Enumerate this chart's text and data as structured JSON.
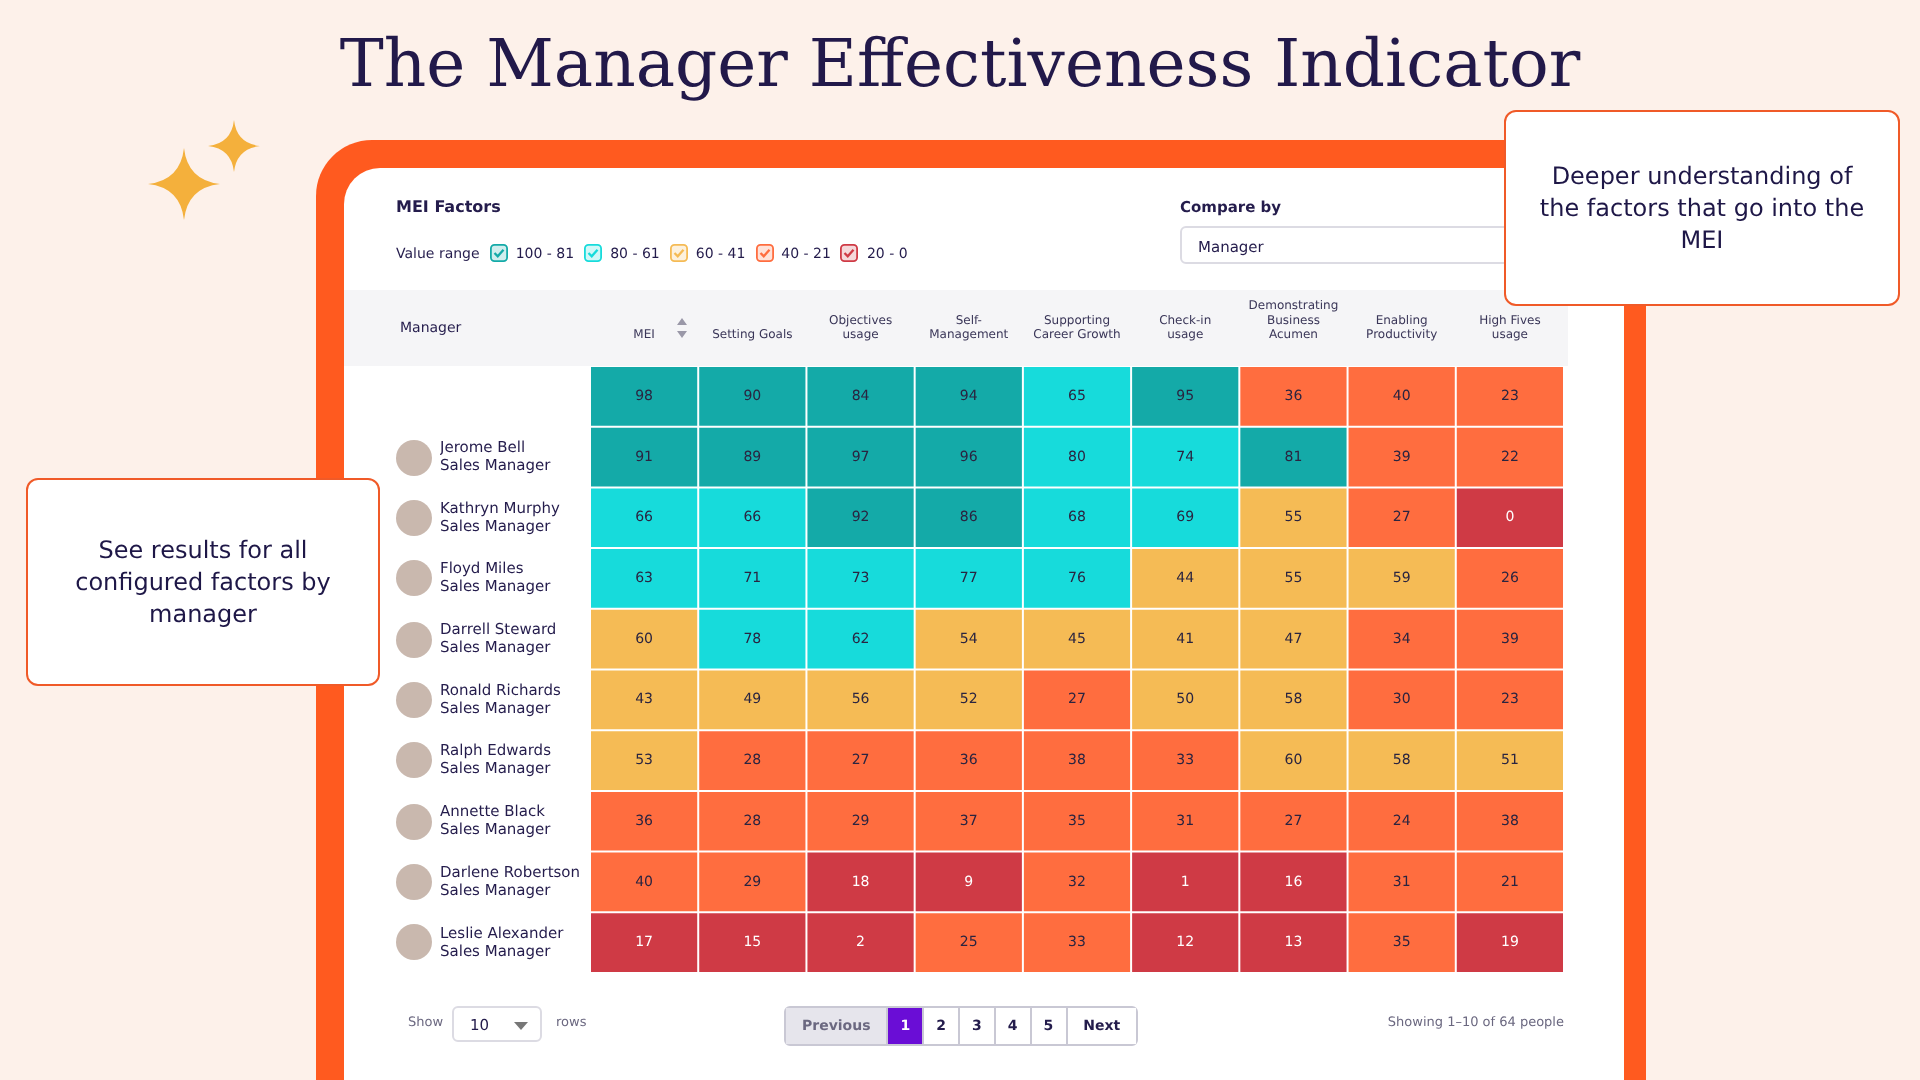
{
  "chart_data": {
    "type": "heatmap",
    "title": "The Manager Effectiveness Indicator",
    "subtitle": "MEI Factors",
    "ylabel": "Manager",
    "legend_title": "Value range",
    "colors": [
      [
        "#14aaa8",
        "#14aaa8",
        "#14aaa8",
        "#14aaa8",
        "#17dbdb",
        "#14aaa8",
        "#ff6d3f",
        "#ff6d3f",
        "#ff6d3f"
      ],
      [
        "#14aaa8",
        "#14aaa8",
        "#14aaa8",
        "#14aaa8",
        "#17dbdb",
        "#17dbdb",
        "#14aaa8",
        "#ff6d3f",
        "#ff6d3f"
      ],
      [
        "#17dbdb",
        "#17dbdb",
        "#14aaa8",
        "#14aaa8",
        "#17dbdb",
        "#17dbdb",
        "#f5bb55",
        "#ff6d3f",
        "#cf3a45"
      ],
      [
        "#17dbdb",
        "#17dbdb",
        "#17dbdb",
        "#17dbdb",
        "#17dbdb",
        "#f5bb55",
        "#f5bb55",
        "#f5bb55",
        "#ff6d3f"
      ],
      [
        "#f5bb55",
        "#17dbdb",
        "#17dbdb",
        "#f5bb55",
        "#f5bb55",
        "#f5bb55",
        "#f5bb55",
        "#ff6d3f",
        "#ff6d3f"
      ],
      [
        "#f5bb55",
        "#f5bb55",
        "#f5bb55",
        "#f5bb55",
        "#ff6d3f",
        "#f5bb55",
        "#f5bb55",
        "#ff6d3f",
        "#ff6d3f"
      ],
      [
        "#f5bb55",
        "#ff6d3f",
        "#ff6d3f",
        "#ff6d3f",
        "#ff6d3f",
        "#ff6d3f",
        "#f5bb55",
        "#f5bb55",
        "#f5bb55"
      ],
      [
        "#ff6d3f",
        "#ff6d3f",
        "#ff6d3f",
        "#ff6d3f",
        "#ff6d3f",
        "#ff6d3f",
        "#ff6d3f",
        "#ff6d3f",
        "#ff6d3f"
      ],
      [
        "#ff6d3f",
        "#ff6d3f",
        "#cf3a45",
        "#cf3a45",
        "#ff6d3f",
        "#cf3a45",
        "#cf3a45",
        "#ff6d3f",
        "#ff6d3f"
      ],
      [
        "#cf3a45",
        "#cf3a45",
        "#cf3a45",
        "#ff6d3f",
        "#ff6d3f",
        "#cf3a45",
        "#cf3a45",
        "#ff6d3f",
        "#cf3a45"
      ]
    ],
    "categories": [
      "MEI",
      "Setting Goals",
      "Objectives usage",
      "Self-Management",
      "Supporting Career Growth",
      "Check-in usage",
      "Demonstrating Business Acumen",
      "Enabling Productivity",
      "High Fives usage"
    ],
    "y_categories": [
      null,
      "Jerome Bell\nSales Manager",
      "Kathryn Murphy\nSales Manager",
      "Floyd Miles\nSales Manager",
      "Darrell Steward\nSales Manager",
      "Ronald Richards\nSales Manager",
      "Ralph Edwards\nSales Manager",
      "Annette Black\nSales Manager",
      "Darlene Robertson\nSales Manager",
      "Leslie Alexander\nSales Manager"
    ],
    "cells": [
      [
        98,
        90,
        84,
        94,
        65,
        95,
        36,
        40,
        23
      ],
      [
        91,
        89,
        97,
        96,
        80,
        74,
        81,
        39,
        22
      ],
      [
        66,
        66,
        92,
        86,
        68,
        69,
        55,
        27,
        0
      ],
      [
        63,
        71,
        73,
        77,
        76,
        44,
        55,
        59,
        26
      ],
      [
        60,
        78,
        62,
        54,
        45,
        41,
        47,
        34,
        39
      ],
      [
        43,
        49,
        56,
        52,
        27,
        50,
        58,
        30,
        23
      ],
      [
        53,
        28,
        27,
        36,
        38,
        33,
        60,
        58,
        51
      ],
      [
        36,
        28,
        29,
        37,
        35,
        31,
        27,
        24,
        38
      ],
      [
        40,
        29,
        18,
        9,
        32,
        1,
        16,
        31,
        21
      ],
      [
        17,
        15,
        2,
        25,
        33,
        12,
        13,
        35,
        19
      ]
    ],
    "data_labels": true,
    "annotations": [
      "Deeper understanding of the factors that go into the MEI",
      "See results for all configured factors by manager",
      "Compare by",
      "Manager",
      "Show",
      "10",
      "rows",
      "Previous",
      "1",
      "2",
      "3",
      "4",
      "5",
      "Next",
      "Showing 1–10 of 64 people",
      "100 - 81",
      "80 - 61",
      "60 - 41",
      "40 - 21",
      "20 - 0"
    ]
  }
}
